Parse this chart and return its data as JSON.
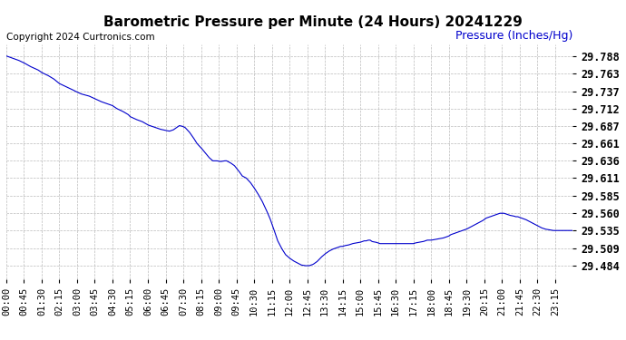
{
  "title": "Barometric Pressure per Minute (24 Hours) 20241229",
  "copyright_text": "Copyright 2024 Curtronics.com",
  "ylabel": "Pressure (Inches/Hg)",
  "ylabel_color": "#0000cc",
  "background_color": "#ffffff",
  "line_color": "#0000cc",
  "grid_color": "#aaaaaa",
  "title_color": "#000000",
  "title_fontsize": 11,
  "ylabel_fontsize": 9,
  "copyright_fontsize": 7.5,
  "tick_fontsize": 7.5,
  "ytick_fontsize": 8.5,
  "yticks": [
    29.484,
    29.509,
    29.535,
    29.56,
    29.585,
    29.611,
    29.636,
    29.661,
    29.687,
    29.712,
    29.737,
    29.763,
    29.788
  ],
  "ylim": [
    29.465,
    29.805
  ],
  "xtick_labels": [
    "00:00",
    "00:45",
    "01:30",
    "02:15",
    "03:00",
    "03:45",
    "04:30",
    "05:15",
    "06:00",
    "06:45",
    "07:30",
    "08:15",
    "09:00",
    "09:45",
    "10:30",
    "11:15",
    "12:00",
    "12:45",
    "13:30",
    "14:15",
    "15:00",
    "15:45",
    "16:30",
    "17:15",
    "18:00",
    "18:45",
    "19:30",
    "20:15",
    "21:00",
    "21:45",
    "22:30",
    "23:15"
  ]
}
